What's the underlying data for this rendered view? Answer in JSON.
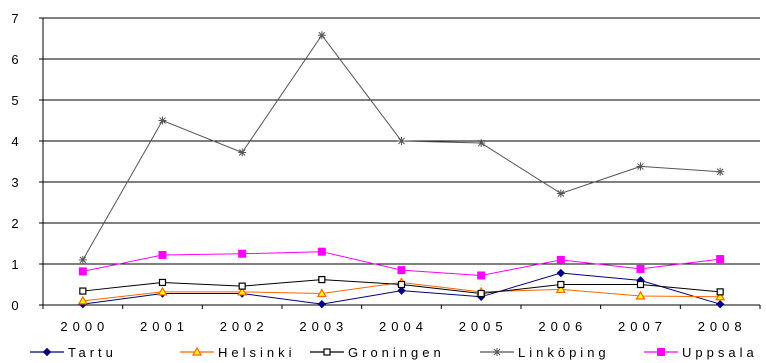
{
  "chart_data": {
    "type": "line",
    "title": "",
    "xlabel": "",
    "ylabel": "",
    "categories": [
      "2000",
      "2001",
      "2002",
      "2003",
      "2004",
      "2005",
      "2006",
      "2007",
      "2008"
    ],
    "ylim": [
      0,
      7
    ],
    "yticks": [
      "0",
      "1",
      "2",
      "3",
      "4",
      "5",
      "6",
      "7"
    ],
    "grid": "horizontal",
    "legend_position": "bottom",
    "series": [
      {
        "name": "Tartu",
        "color": "#000080",
        "marker": "diamond",
        "values": [
          0.02,
          0.28,
          0.28,
          0.02,
          0.35,
          0.2,
          0.78,
          0.6,
          0.02
        ]
      },
      {
        "name": "Helsinki",
        "color": "#ff6600",
        "marker": "triangle",
        "values": [
          0.1,
          0.32,
          0.32,
          0.28,
          0.55,
          0.32,
          0.38,
          0.22,
          0.2
        ]
      },
      {
        "name": "Groningen",
        "color": "#000000",
        "marker": "square-open",
        "values": [
          0.34,
          0.55,
          0.46,
          0.62,
          0.5,
          0.28,
          0.5,
          0.5,
          0.32
        ]
      },
      {
        "name": "Linköping",
        "color": "#555555",
        "marker": "star",
        "values": [
          1.1,
          4.5,
          3.72,
          6.58,
          4.0,
          3.95,
          2.72,
          3.38,
          3.25
        ]
      },
      {
        "name": "Uppsala",
        "color": "#ff00ff",
        "marker": "square",
        "values": [
          0.82,
          1.22,
          1.25,
          1.3,
          0.85,
          0.72,
          1.1,
          0.88,
          1.12
        ]
      }
    ]
  }
}
